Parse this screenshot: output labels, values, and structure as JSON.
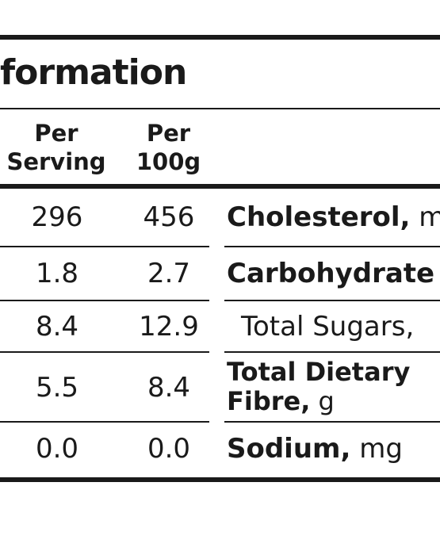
{
  "header": {
    "title": "formation"
  },
  "columns": {
    "per_serving": {
      "line1": "Per",
      "line2": "Serving"
    },
    "per_100g": {
      "line1": "Per",
      "line2": "100g"
    }
  },
  "rows": [
    {
      "per_serving": "296",
      "per_100g": "456",
      "name": "Cholesterol,",
      "unit": " m"
    },
    {
      "per_serving": "1.8",
      "per_100g": "2.7",
      "name": "Carbohydrate",
      "unit": ""
    },
    {
      "per_serving": "8.4",
      "per_100g": "12.9",
      "name": "",
      "unit": "Total Sugars,"
    },
    {
      "per_serving": "5.5",
      "per_100g": "8.4",
      "name_line1": "Total Dietary",
      "name_line2": "Fibre,",
      "unit": " g"
    },
    {
      "per_serving": "0.0",
      "per_100g": "0.0",
      "name": "Sodium,",
      "unit": " mg"
    }
  ]
}
